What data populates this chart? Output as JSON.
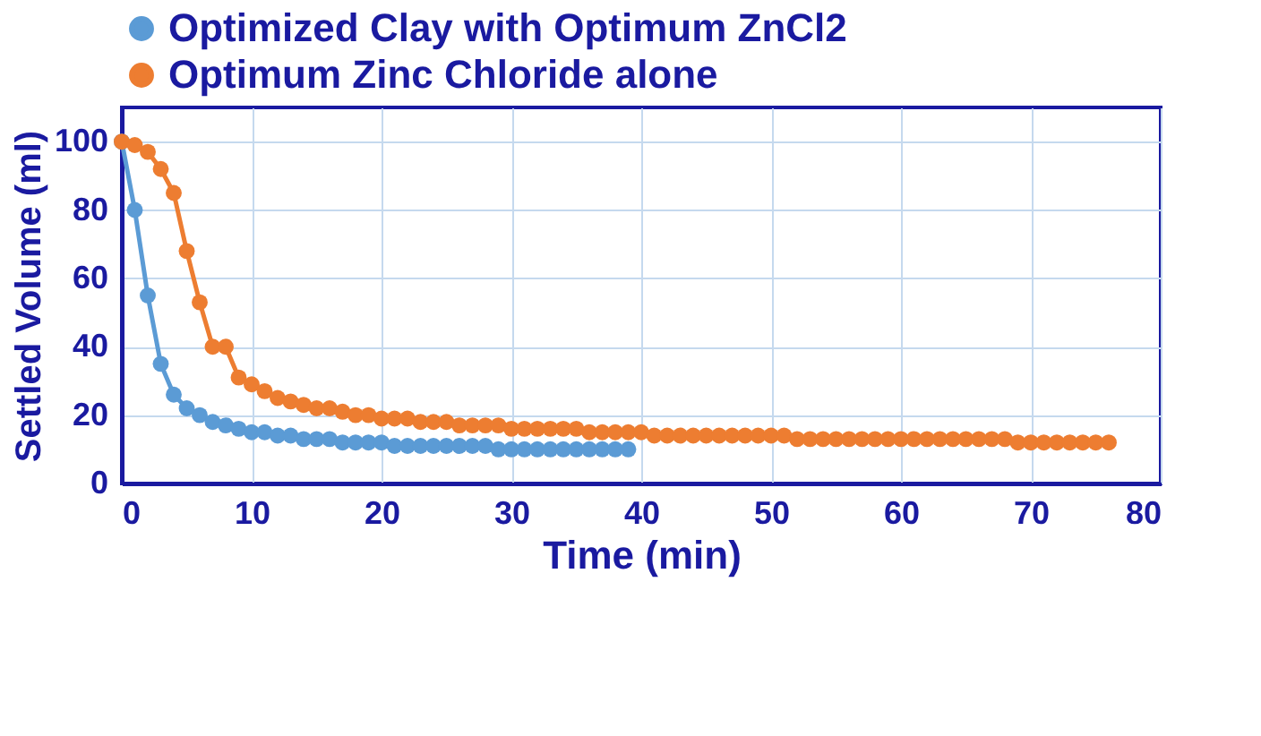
{
  "chart_data": {
    "type": "line",
    "xlabel": "Time (min)",
    "ylabel": "Settled Volume (ml)",
    "xlim": [
      0,
      80
    ],
    "xticks": [
      0,
      10,
      20,
      30,
      40,
      50,
      60,
      70,
      80
    ],
    "ylim": [
      0,
      110
    ],
    "yticks": [
      0,
      20,
      40,
      60,
      80,
      100
    ],
    "grid": true,
    "legend": "top",
    "marker": "circle",
    "line_style": "solid",
    "series": [
      {
        "name": "Optimized Clay with Optimum ZnCl2",
        "color": "#5b9bd5",
        "x": [
          0,
          1,
          2,
          3,
          4,
          5,
          6,
          7,
          8,
          9,
          10,
          11,
          12,
          13,
          14,
          15,
          16,
          17,
          18,
          19,
          20,
          21,
          22,
          23,
          24,
          25,
          26,
          27,
          28,
          29,
          30,
          31,
          32,
          33,
          34,
          35,
          36,
          37,
          38,
          39
        ],
        "values": [
          100,
          80,
          55,
          35,
          26,
          22,
          20,
          18,
          17,
          16,
          15,
          15,
          14,
          14,
          13,
          13,
          13,
          12,
          12,
          12,
          12,
          11,
          11,
          11,
          11,
          11,
          11,
          11,
          11,
          10,
          10,
          10,
          10,
          10,
          10,
          10,
          10,
          10,
          10,
          10
        ]
      },
      {
        "name": "Optimum Zinc Chloride alone",
        "color": "#ed7d31",
        "x": [
          0,
          1,
          2,
          3,
          4,
          5,
          6,
          7,
          8,
          9,
          10,
          11,
          12,
          13,
          14,
          15,
          16,
          17,
          18,
          19,
          20,
          21,
          22,
          23,
          24,
          25,
          26,
          27,
          28,
          29,
          30,
          31,
          32,
          33,
          34,
          35,
          36,
          37,
          38,
          39,
          40,
          41,
          42,
          43,
          44,
          45,
          46,
          47,
          48,
          49,
          50,
          51,
          52,
          53,
          54,
          55,
          56,
          57,
          58,
          59,
          60,
          61,
          62,
          63,
          64,
          65,
          66,
          67,
          68,
          69,
          70,
          71,
          72,
          73,
          74,
          75,
          76
        ],
        "values": [
          100,
          99,
          97,
          92,
          85,
          68,
          53,
          40,
          40,
          31,
          29,
          27,
          25,
          24,
          23,
          22,
          22,
          21,
          20,
          20,
          19,
          19,
          19,
          18,
          18,
          18,
          17,
          17,
          17,
          17,
          16,
          16,
          16,
          16,
          16,
          16,
          15,
          15,
          15,
          15,
          15,
          14,
          14,
          14,
          14,
          14,
          14,
          14,
          14,
          14,
          14,
          14,
          13,
          13,
          13,
          13,
          13,
          13,
          13,
          13,
          13,
          13,
          13,
          13,
          13,
          13,
          13,
          13,
          13,
          12,
          12,
          12,
          12,
          12,
          12,
          12,
          12
        ]
      }
    ]
  }
}
